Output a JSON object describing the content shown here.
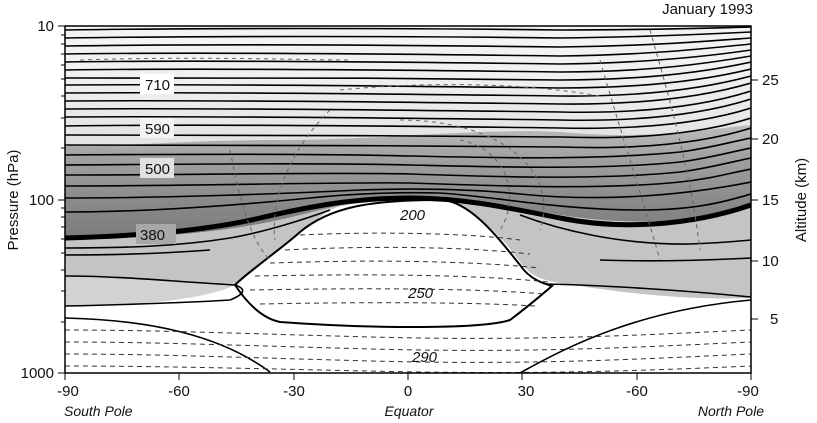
{
  "title": "January 1993",
  "y_left_label": "Pressure (hPa)",
  "y_right_label": "Altitude (km)",
  "x_ticks": [
    "-90",
    "-60",
    "-30",
    "0",
    "30",
    "-60",
    "-90"
  ],
  "x_annotations": {
    "south": "South Pole",
    "equator": "Equator",
    "north": "North Pole"
  },
  "y_left_ticks": [
    "10",
    "100",
    "1000"
  ],
  "y_right_ticks": [
    "25",
    "20",
    "15",
    "10",
    "5"
  ],
  "contour_labels": {
    "c710": "710",
    "c590": "590",
    "c500": "500",
    "c380": "380",
    "c200": "200",
    "c250": "250",
    "c290": "290"
  },
  "colors": {
    "shade_dark": "#8c8c8c",
    "shade_mid": "#bdbdbd",
    "shade_light": "#dedede",
    "line": "#000000"
  }
}
